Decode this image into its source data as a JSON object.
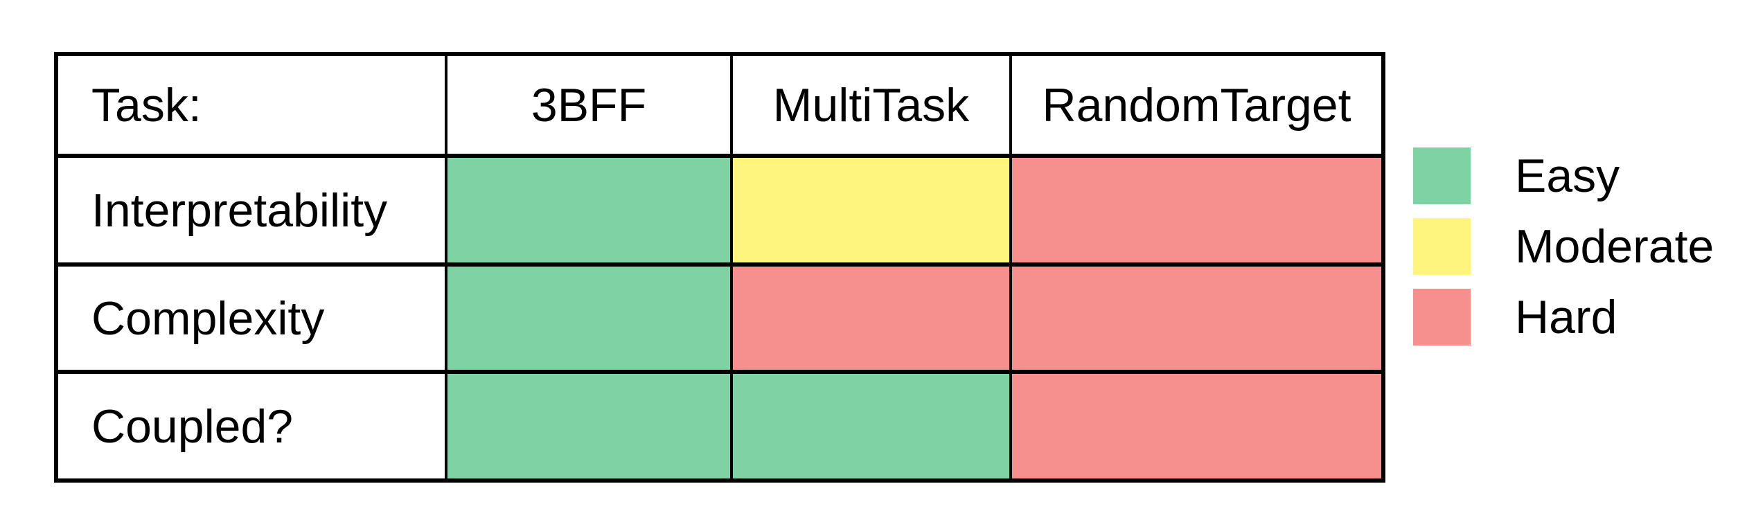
{
  "colors": {
    "easy": "#7ED2A3",
    "moderate": "#FDF57D",
    "hard": "#F6908F",
    "grid_line": "#000000",
    "background": "#FFFFFF",
    "text": "#000000"
  },
  "table": {
    "header": {
      "task_label": "Task:",
      "columns": [
        "3BFF",
        "MultiTask",
        "RandomTarget"
      ]
    },
    "rows": [
      {
        "label": "Interpretability",
        "values": [
          "easy",
          "moderate",
          "hard"
        ]
      },
      {
        "label": "Complexity",
        "values": [
          "easy",
          "hard",
          "hard"
        ]
      },
      {
        "label": "Coupled?",
        "values": [
          "easy",
          "easy",
          "hard"
        ]
      }
    ]
  },
  "legend": {
    "items": [
      {
        "level": "easy",
        "label": "Easy"
      },
      {
        "level": "moderate",
        "label": "Moderate"
      },
      {
        "level": "hard",
        "label": "Hard"
      }
    ]
  },
  "chart_data": {
    "type": "heatmap",
    "title": "",
    "columns": [
      "3BFF",
      "MultiTask",
      "RandomTarget"
    ],
    "rows": [
      "Interpretability",
      "Complexity",
      "Coupled?"
    ],
    "values": [
      [
        "Easy",
        "Moderate",
        "Hard"
      ],
      [
        "Easy",
        "Hard",
        "Hard"
      ],
      [
        "Easy",
        "Easy",
        "Hard"
      ]
    ],
    "legend": [
      {
        "label": "Easy",
        "color": "#7ED2A3"
      },
      {
        "label": "Moderate",
        "color": "#FDF57D"
      },
      {
        "label": "Hard",
        "color": "#F6908F"
      }
    ],
    "legend_position": "right",
    "grid": true
  }
}
